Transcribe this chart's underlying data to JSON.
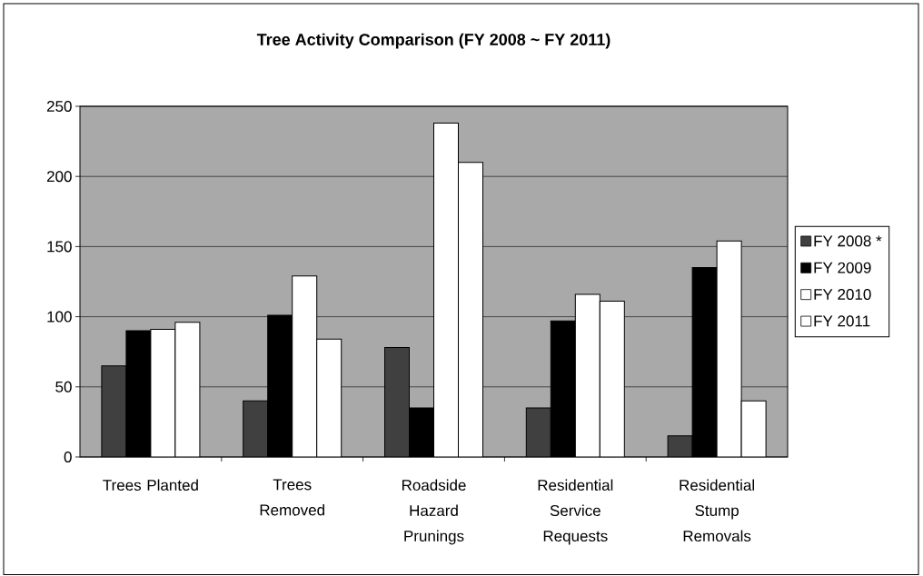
{
  "chart_data": {
    "type": "bar",
    "title": "Tree Activity Comparison (FY 2008 ~ FY 2011)",
    "categories": [
      "Trees Planted",
      "Trees Removed",
      "Roadside Hazard Prunings",
      "Residential Service Requests",
      "Residential Stump Removals"
    ],
    "series": [
      {
        "name": "FY 2008 *",
        "color": "#404040",
        "values": [
          65,
          40,
          78,
          35,
          15
        ]
      },
      {
        "name": "FY 2009",
        "color": "#000000",
        "values": [
          90,
          101,
          35,
          97,
          135
        ]
      },
      {
        "name": "FY 2010",
        "color": "#ffffff",
        "values": [
          91,
          129,
          238,
          116,
          154
        ]
      },
      {
        "name": "FY 2011",
        "color": "#ffffff",
        "values": [
          96,
          84,
          210,
          111,
          40
        ]
      }
    ],
    "ylim": [
      0,
      250
    ],
    "yticks": [
      0,
      50,
      100,
      150,
      200,
      250
    ],
    "grid": "y",
    "legend": "right"
  }
}
